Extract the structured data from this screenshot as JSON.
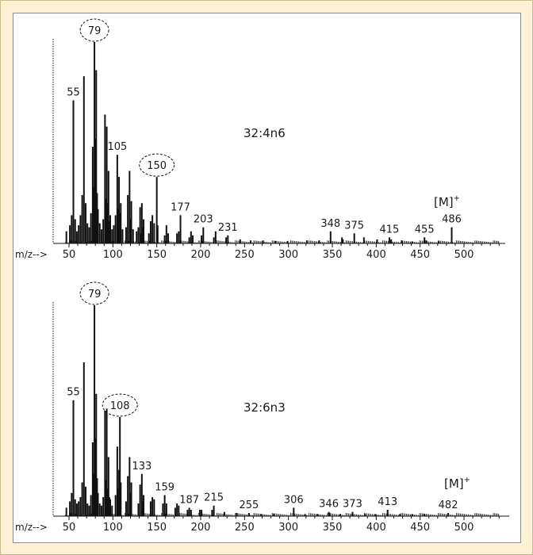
{
  "colors": {
    "background": "#fdf2d6",
    "panel": "#ffffff",
    "ink": "#111111"
  },
  "chart_data": [
    {
      "type": "bar",
      "title": "32:4n6",
      "xlabel": "m/z-->",
      "xlim": [
        45,
        550
      ],
      "ylim": [
        0,
        100
      ],
      "xticks": [
        50,
        100,
        150,
        200,
        250,
        300,
        350,
        400,
        450,
        500
      ],
      "molecular_ion_label": "[M]+",
      "peak_labels": [
        {
          "x": 55,
          "text": "55"
        },
        {
          "x": 79,
          "text": "79",
          "circled": true
        },
        {
          "x": 105,
          "text": "105"
        },
        {
          "x": 150,
          "text": "150",
          "circled": true
        },
        {
          "x": 177,
          "text": "177"
        },
        {
          "x": 203,
          "text": "203"
        },
        {
          "x": 231,
          "text": "231"
        },
        {
          "x": 348,
          "text": "348"
        },
        {
          "x": 375,
          "text": "375"
        },
        {
          "x": 415,
          "text": "415"
        },
        {
          "x": 455,
          "text": "455"
        },
        {
          "x": 486,
          "text": "486"
        }
      ],
      "peaks": [
        {
          "x": 47,
          "y": 6
        },
        {
          "x": 51,
          "y": 9
        },
        {
          "x": 53,
          "y": 14
        },
        {
          "x": 55,
          "y": 71
        },
        {
          "x": 57,
          "y": 12
        },
        {
          "x": 59,
          "y": 6
        },
        {
          "x": 61,
          "y": 9
        },
        {
          "x": 63,
          "y": 14
        },
        {
          "x": 65,
          "y": 24
        },
        {
          "x": 67,
          "y": 83
        },
        {
          "x": 69,
          "y": 20
        },
        {
          "x": 71,
          "y": 10
        },
        {
          "x": 73,
          "y": 8
        },
        {
          "x": 75,
          "y": 15
        },
        {
          "x": 77,
          "y": 48
        },
        {
          "x": 78,
          "y": 28
        },
        {
          "x": 79,
          "y": 100
        },
        {
          "x": 80,
          "y": 52
        },
        {
          "x": 81,
          "y": 86
        },
        {
          "x": 82,
          "y": 25
        },
        {
          "x": 83,
          "y": 17
        },
        {
          "x": 85,
          "y": 10
        },
        {
          "x": 87,
          "y": 7
        },
        {
          "x": 89,
          "y": 12
        },
        {
          "x": 91,
          "y": 64
        },
        {
          "x": 92,
          "y": 22
        },
        {
          "x": 93,
          "y": 58
        },
        {
          "x": 94,
          "y": 20
        },
        {
          "x": 95,
          "y": 36
        },
        {
          "x": 96,
          "y": 11
        },
        {
          "x": 97,
          "y": 14
        },
        {
          "x": 99,
          "y": 7
        },
        {
          "x": 101,
          "y": 9
        },
        {
          "x": 103,
          "y": 14
        },
        {
          "x": 105,
          "y": 44
        },
        {
          "x": 106,
          "y": 17
        },
        {
          "x": 107,
          "y": 33
        },
        {
          "x": 108,
          "y": 15
        },
        {
          "x": 109,
          "y": 20
        },
        {
          "x": 111,
          "y": 7
        },
        {
          "x": 115,
          "y": 8
        },
        {
          "x": 117,
          "y": 24
        },
        {
          "x": 119,
          "y": 36
        },
        {
          "x": 120,
          "y": 12
        },
        {
          "x": 121,
          "y": 21
        },
        {
          "x": 123,
          "y": 7
        },
        {
          "x": 127,
          "y": 6
        },
        {
          "x": 129,
          "y": 8
        },
        {
          "x": 131,
          "y": 18
        },
        {
          "x": 132,
          "y": 5
        },
        {
          "x": 133,
          "y": 20
        },
        {
          "x": 134,
          "y": 8
        },
        {
          "x": 135,
          "y": 12
        },
        {
          "x": 141,
          "y": 5
        },
        {
          "x": 143,
          "y": 11
        },
        {
          "x": 145,
          "y": 14
        },
        {
          "x": 147,
          "y": 10
        },
        {
          "x": 150,
          "y": 33
        },
        {
          "x": 151,
          "y": 9
        },
        {
          "x": 159,
          "y": 4
        },
        {
          "x": 161,
          "y": 9
        },
        {
          "x": 163,
          "y": 5
        },
        {
          "x": 173,
          "y": 5
        },
        {
          "x": 175,
          "y": 6
        },
        {
          "x": 177,
          "y": 14
        },
        {
          "x": 187,
          "y": 3
        },
        {
          "x": 189,
          "y": 6
        },
        {
          "x": 191,
          "y": 4
        },
        {
          "x": 201,
          "y": 4
        },
        {
          "x": 203,
          "y": 8
        },
        {
          "x": 215,
          "y": 3
        },
        {
          "x": 217,
          "y": 6
        },
        {
          "x": 229,
          "y": 3
        },
        {
          "x": 231,
          "y": 4
        },
        {
          "x": 245,
          "y": 2
        },
        {
          "x": 257,
          "y": 1.5
        },
        {
          "x": 271,
          "y": 1.5
        },
        {
          "x": 285,
          "y": 1.2
        },
        {
          "x": 299,
          "y": 1.2
        },
        {
          "x": 321,
          "y": 1.5
        },
        {
          "x": 335,
          "y": 1.5
        },
        {
          "x": 348,
          "y": 6
        },
        {
          "x": 361,
          "y": 3
        },
        {
          "x": 362,
          "y": 2
        },
        {
          "x": 375,
          "y": 5
        },
        {
          "x": 386,
          "y": 3
        },
        {
          "x": 401,
          "y": 2
        },
        {
          "x": 415,
          "y": 3
        },
        {
          "x": 417,
          "y": 2
        },
        {
          "x": 429,
          "y": 1.5
        },
        {
          "x": 441,
          "y": 1
        },
        {
          "x": 455,
          "y": 3
        },
        {
          "x": 457,
          "y": 1.5
        },
        {
          "x": 471,
          "y": 1
        },
        {
          "x": 486,
          "y": 8
        }
      ]
    },
    {
      "type": "bar",
      "title": "32:6n3",
      "xlabel": "m/z-->",
      "xlim": [
        45,
        550
      ],
      "ylim": [
        0,
        100
      ],
      "xticks": [
        50,
        100,
        150,
        200,
        250,
        300,
        350,
        400,
        450,
        500
      ],
      "molecular_ion_label": "[M]+",
      "peak_labels": [
        {
          "x": 55,
          "text": "55"
        },
        {
          "x": 79,
          "text": "79",
          "circled": true
        },
        {
          "x": 108,
          "text": "108",
          "circled": true
        },
        {
          "x": 133,
          "text": "133"
        },
        {
          "x": 159,
          "text": "159"
        },
        {
          "x": 187,
          "text": "187"
        },
        {
          "x": 215,
          "text": "215"
        },
        {
          "x": 255,
          "text": "255"
        },
        {
          "x": 306,
          "text": "306"
        },
        {
          "x": 346,
          "text": "346"
        },
        {
          "x": 373,
          "text": "373"
        },
        {
          "x": 413,
          "text": "413"
        },
        {
          "x": 482,
          "text": "482"
        }
      ],
      "peaks": [
        {
          "x": 47,
          "y": 4
        },
        {
          "x": 51,
          "y": 7
        },
        {
          "x": 53,
          "y": 11
        },
        {
          "x": 55,
          "y": 55
        },
        {
          "x": 57,
          "y": 8
        },
        {
          "x": 59,
          "y": 6
        },
        {
          "x": 61,
          "y": 7
        },
        {
          "x": 63,
          "y": 9
        },
        {
          "x": 65,
          "y": 16
        },
        {
          "x": 67,
          "y": 73
        },
        {
          "x": 69,
          "y": 14
        },
        {
          "x": 71,
          "y": 6
        },
        {
          "x": 73,
          "y": 5
        },
        {
          "x": 75,
          "y": 10
        },
        {
          "x": 77,
          "y": 35
        },
        {
          "x": 78,
          "y": 20
        },
        {
          "x": 79,
          "y": 100
        },
        {
          "x": 80,
          "y": 37
        },
        {
          "x": 81,
          "y": 58
        },
        {
          "x": 82,
          "y": 18
        },
        {
          "x": 83,
          "y": 11
        },
        {
          "x": 85,
          "y": 6
        },
        {
          "x": 87,
          "y": 5
        },
        {
          "x": 89,
          "y": 9
        },
        {
          "x": 91,
          "y": 50
        },
        {
          "x": 92,
          "y": 17
        },
        {
          "x": 93,
          "y": 51
        },
        {
          "x": 94,
          "y": 13
        },
        {
          "x": 95,
          "y": 28
        },
        {
          "x": 96,
          "y": 9
        },
        {
          "x": 97,
          "y": 8
        },
        {
          "x": 99,
          "y": 5
        },
        {
          "x": 103,
          "y": 10
        },
        {
          "x": 105,
          "y": 33
        },
        {
          "x": 106,
          "y": 13
        },
        {
          "x": 107,
          "y": 22
        },
        {
          "x": 108,
          "y": 47
        },
        {
          "x": 109,
          "y": 16
        },
        {
          "x": 115,
          "y": 7
        },
        {
          "x": 117,
          "y": 19
        },
        {
          "x": 119,
          "y": 28
        },
        {
          "x": 120,
          "y": 11
        },
        {
          "x": 121,
          "y": 16
        },
        {
          "x": 129,
          "y": 6
        },
        {
          "x": 131,
          "y": 15
        },
        {
          "x": 133,
          "y": 20
        },
        {
          "x": 134,
          "y": 7
        },
        {
          "x": 135,
          "y": 10
        },
        {
          "x": 143,
          "y": 7
        },
        {
          "x": 145,
          "y": 9
        },
        {
          "x": 147,
          "y": 8
        },
        {
          "x": 157,
          "y": 6
        },
        {
          "x": 159,
          "y": 10
        },
        {
          "x": 161,
          "y": 6
        },
        {
          "x": 171,
          "y": 4
        },
        {
          "x": 173,
          "y": 6
        },
        {
          "x": 175,
          "y": 5
        },
        {
          "x": 185,
          "y": 3
        },
        {
          "x": 187,
          "y": 4
        },
        {
          "x": 189,
          "y": 3
        },
        {
          "x": 199,
          "y": 3
        },
        {
          "x": 201,
          "y": 3
        },
        {
          "x": 213,
          "y": 3
        },
        {
          "x": 215,
          "y": 5
        },
        {
          "x": 227,
          "y": 2
        },
        {
          "x": 241,
          "y": 1.5
        },
        {
          "x": 255,
          "y": 1.5
        },
        {
          "x": 269,
          "y": 1
        },
        {
          "x": 283,
          "y": 1
        },
        {
          "x": 306,
          "y": 4
        },
        {
          "x": 319,
          "y": 1
        },
        {
          "x": 333,
          "y": 1
        },
        {
          "x": 346,
          "y": 2
        },
        {
          "x": 347,
          "y": 1.5
        },
        {
          "x": 359,
          "y": 1
        },
        {
          "x": 373,
          "y": 2
        },
        {
          "x": 387,
          "y": 1
        },
        {
          "x": 399,
          "y": 1
        },
        {
          "x": 413,
          "y": 3
        },
        {
          "x": 427,
          "y": 1
        },
        {
          "x": 441,
          "y": 1
        },
        {
          "x": 455,
          "y": 1
        },
        {
          "x": 482,
          "y": 1.5
        }
      ]
    }
  ]
}
